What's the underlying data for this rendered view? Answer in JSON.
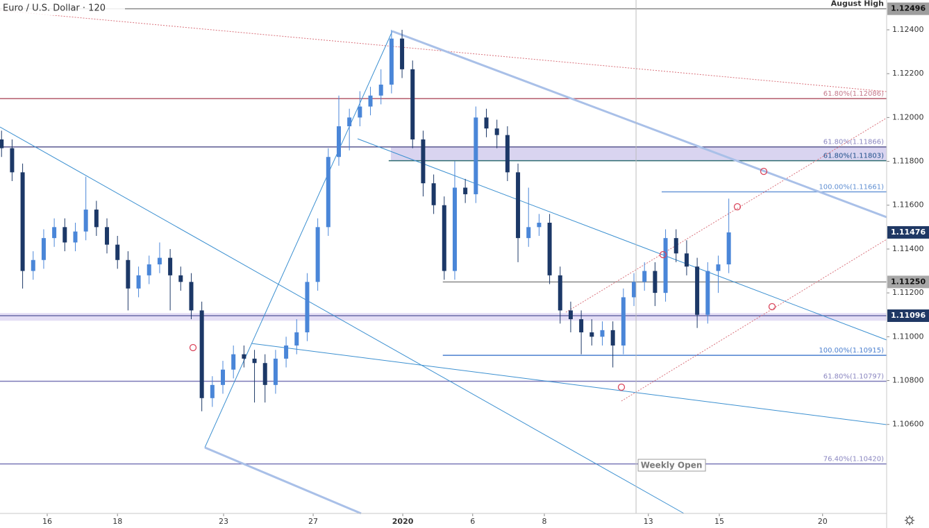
{
  "chart_data": {
    "type": "candlestick",
    "title": "Euro / U.S. Dollar · 120",
    "annotation": "Weekly Open",
    "annotation_x": 16.76,
    "up_color": "#4a86d8",
    "down_color": "#1c3867",
    "xlim": [
      -1.344,
      23.893
    ],
    "xticks": [
      {
        "value": 0,
        "label": "16"
      },
      {
        "value": 2,
        "label": "18"
      },
      {
        "value": 5.02,
        "label": "23"
      },
      {
        "value": 7.57,
        "label": "27"
      },
      {
        "value": 10.12,
        "label": "2020"
      },
      {
        "value": 12.11,
        "label": "6"
      },
      {
        "value": 14.15,
        "label": "8"
      },
      {
        "value": 17.11,
        "label": "13"
      },
      {
        "value": 19.13,
        "label": "15"
      },
      {
        "value": 22.07,
        "label": "20"
      }
    ],
    "ylim": [
      1.10194,
      1.12536
    ],
    "yticks": [
      {
        "value": 1.124,
        "label": "1.12400"
      },
      {
        "value": 1.122,
        "label": "1.12200"
      },
      {
        "value": 1.12,
        "label": "1.12000"
      },
      {
        "value": 1.118,
        "label": "1.11800"
      },
      {
        "value": 1.116,
        "label": "1.11600"
      },
      {
        "value": 1.114,
        "label": "1.11400"
      },
      {
        "value": 1.112,
        "label": "1.11200"
      },
      {
        "value": 1.11,
        "label": "1.11000"
      },
      {
        "value": 1.108,
        "label": "1.10800"
      },
      {
        "value": 1.106,
        "label": "1.10600"
      }
    ],
    "x": [
      -1.3,
      -1.0,
      -0.7,
      -0.4,
      -0.1,
      0.2,
      0.5,
      0.8,
      1.1,
      1.4,
      1.7,
      2.0,
      2.3,
      2.6,
      2.9,
      3.2,
      3.5,
      3.8,
      4.1,
      4.4,
      4.7,
      5.0,
      5.3,
      5.6,
      5.9,
      6.2,
      6.5,
      6.8,
      7.1,
      7.4,
      7.7,
      8.0,
      8.3,
      8.6,
      8.9,
      9.2,
      9.5,
      9.8,
      10.1,
      10.4,
      10.7,
      11.0,
      11.3,
      11.6,
      11.9,
      12.2,
      12.5,
      12.8,
      13.1,
      13.4,
      13.7,
      14.0,
      14.3,
      14.6,
      14.9,
      15.2,
      15.5,
      15.8,
      16.1,
      16.4,
      16.7,
      17.0,
      17.3,
      17.6,
      17.9,
      18.2,
      18.5,
      18.8,
      19.1,
      19.4
    ],
    "open": [
      1.119,
      1.1186,
      1.1175,
      1.113,
      1.1135,
      1.1145,
      1.115,
      1.1143,
      1.1148,
      1.1158,
      1.115,
      1.1142,
      1.1135,
      1.1122,
      1.1128,
      1.1133,
      1.1136,
      1.1128,
      1.1125,
      1.1112,
      1.1072,
      1.1078,
      1.1085,
      1.1092,
      1.109,
      1.1088,
      1.1078,
      1.109,
      1.1096,
      1.1102,
      1.1125,
      1.115,
      1.1182,
      1.1196,
      1.12,
      1.1205,
      1.121,
      1.1215,
      1.1236,
      1.1222,
      1.119,
      1.117,
      1.116,
      1.113,
      1.1168,
      1.1165,
      1.12,
      1.1195,
      1.1192,
      1.1175,
      1.1145,
      1.115,
      1.1152,
      1.1128,
      1.1112,
      1.1108,
      1.1102,
      1.11,
      1.1103,
      1.1096,
      1.1118,
      1.1125,
      1.113,
      1.112,
      1.1145,
      1.1138,
      1.1132,
      1.111,
      1.113,
      1.1133
    ],
    "high": [
      1.1194,
      1.119,
      1.1179,
      1.1139,
      1.1149,
      1.1154,
      1.1154,
      1.1152,
      1.1173,
      1.1162,
      1.1154,
      1.1146,
      1.1139,
      1.1132,
      1.1137,
      1.1143,
      1.114,
      1.1132,
      1.1129,
      1.1116,
      1.1082,
      1.1089,
      1.1096,
      1.1096,
      1.1094,
      1.1092,
      1.1094,
      1.11,
      1.1108,
      1.1129,
      1.1154,
      1.1186,
      1.121,
      1.1204,
      1.1212,
      1.1214,
      1.1222,
      1.124,
      1.124,
      1.1226,
      1.1194,
      1.1174,
      1.1164,
      1.118,
      1.1172,
      1.1205,
      1.1204,
      1.1199,
      1.1196,
      1.1179,
      1.1168,
      1.1156,
      1.1156,
      1.1132,
      1.1116,
      1.1112,
      1.1108,
      1.1107,
      1.1107,
      1.1122,
      1.1129,
      1.1134,
      1.1134,
      1.1149,
      1.1149,
      1.1144,
      1.1136,
      1.1134,
      1.1137,
      1.1163
    ],
    "low": [
      1.1182,
      1.1171,
      1.1122,
      1.1126,
      1.1131,
      1.1141,
      1.1139,
      1.1139,
      1.1144,
      1.1146,
      1.1138,
      1.1131,
      1.1112,
      1.1118,
      1.1124,
      1.1129,
      1.1112,
      1.1121,
      1.1108,
      1.1066,
      1.1068,
      1.1074,
      1.1081,
      1.1086,
      1.107,
      1.107,
      1.1074,
      1.1086,
      1.1092,
      1.1098,
      1.1121,
      1.1146,
      1.1178,
      1.1185,
      1.1196,
      1.1201,
      1.1206,
      1.1211,
      1.1218,
      1.1186,
      1.1164,
      1.1156,
      1.1126,
      1.1126,
      1.1161,
      1.1161,
      1.1191,
      1.1186,
      1.1171,
      1.1134,
      1.1141,
      1.1146,
      1.1124,
      1.1106,
      1.1102,
      1.1092,
      1.1096,
      1.1096,
      1.1086,
      1.1092,
      1.1114,
      1.1121,
      1.1114,
      1.1116,
      1.1134,
      1.1128,
      1.1104,
      1.1106,
      1.112,
      1.1129
    ],
    "close": [
      1.1186,
      1.1175,
      1.113,
      1.1135,
      1.1145,
      1.115,
      1.1143,
      1.1148,
      1.1158,
      1.115,
      1.1142,
      1.1135,
      1.1122,
      1.1128,
      1.1133,
      1.1136,
      1.1128,
      1.1125,
      1.1112,
      1.1072,
      1.1078,
      1.1085,
      1.1092,
      1.109,
      1.1088,
      1.1078,
      1.109,
      1.1096,
      1.1102,
      1.1125,
      1.115,
      1.1182,
      1.1196,
      1.12,
      1.1205,
      1.121,
      1.1215,
      1.1236,
      1.1222,
      1.119,
      1.117,
      1.116,
      1.113,
      1.1168,
      1.1165,
      1.12,
      1.1195,
      1.1192,
      1.1175,
      1.1145,
      1.115,
      1.1152,
      1.1128,
      1.1112,
      1.1108,
      1.1102,
      1.11,
      1.1103,
      1.1096,
      1.1118,
      1.1125,
      1.113,
      1.112,
      1.1145,
      1.1138,
      1.1132,
      1.111,
      1.113,
      1.1133,
      1.11476
    ],
    "zones": [
      {
        "from": 1.11803,
        "to": 1.11866,
        "start": 9.78,
        "color": "#d9d4f0"
      },
      {
        "from": 1.11073,
        "to": 1.11108,
        "color": "#e4def5"
      }
    ],
    "levels": [
      {
        "value": 1.12496,
        "label": "August High",
        "color": "#8a8a8a",
        "text_color": "#333333"
      },
      {
        "value": 1.12086,
        "label": "61.80%(1.12086)",
        "color": "#b35a6a",
        "text_color": "#c4788a"
      },
      {
        "value": 1.11866,
        "label": "61.80%(1.11866)",
        "color": "#5a5890",
        "text_color": "#8a86c0"
      },
      {
        "value": 1.11803,
        "label": "61.80%(1.11803)",
        "color": "#2f6b70",
        "text_color": "#1f4f8a",
        "start": 9.72
      },
      {
        "value": 1.11661,
        "label": "100.00%(1.11661)",
        "color": "#6a98d8",
        "text_color": "#5f8fd2",
        "start": 17.49
      },
      {
        "value": 1.1125,
        "color": "#8a8a8a",
        "start": 11.26
      },
      {
        "value": 1.11096,
        "color": "#6a6aa8"
      },
      {
        "value": 1.10915,
        "label": "100.00%(1.10915)",
        "color": "#4a7fcf",
        "text_color": "#4a7fcf",
        "start": 11.26
      },
      {
        "value": 1.10797,
        "label": "61.80%(1.10797)",
        "color": "#7a78b8",
        "text_color": "#8a86c0"
      },
      {
        "value": 1.1042,
        "label": "76.40%(1.10420)",
        "color": "#7a78b8",
        "text_color": "#8a86c0"
      }
    ],
    "badges": [
      {
        "value": 1.12496,
        "bg": "#9e9e9e",
        "fg": "#111111"
      },
      {
        "value": 1.11476,
        "bg": "#1f3864",
        "fg": "#ffffff"
      },
      {
        "value": 1.1125,
        "label": "1.11250",
        "bg": "#a8a8a8",
        "fg": "#111111"
      },
      {
        "value": 1.11096,
        "bg": "#1f3864",
        "fg": "#ffffff"
      }
    ]
  }
}
